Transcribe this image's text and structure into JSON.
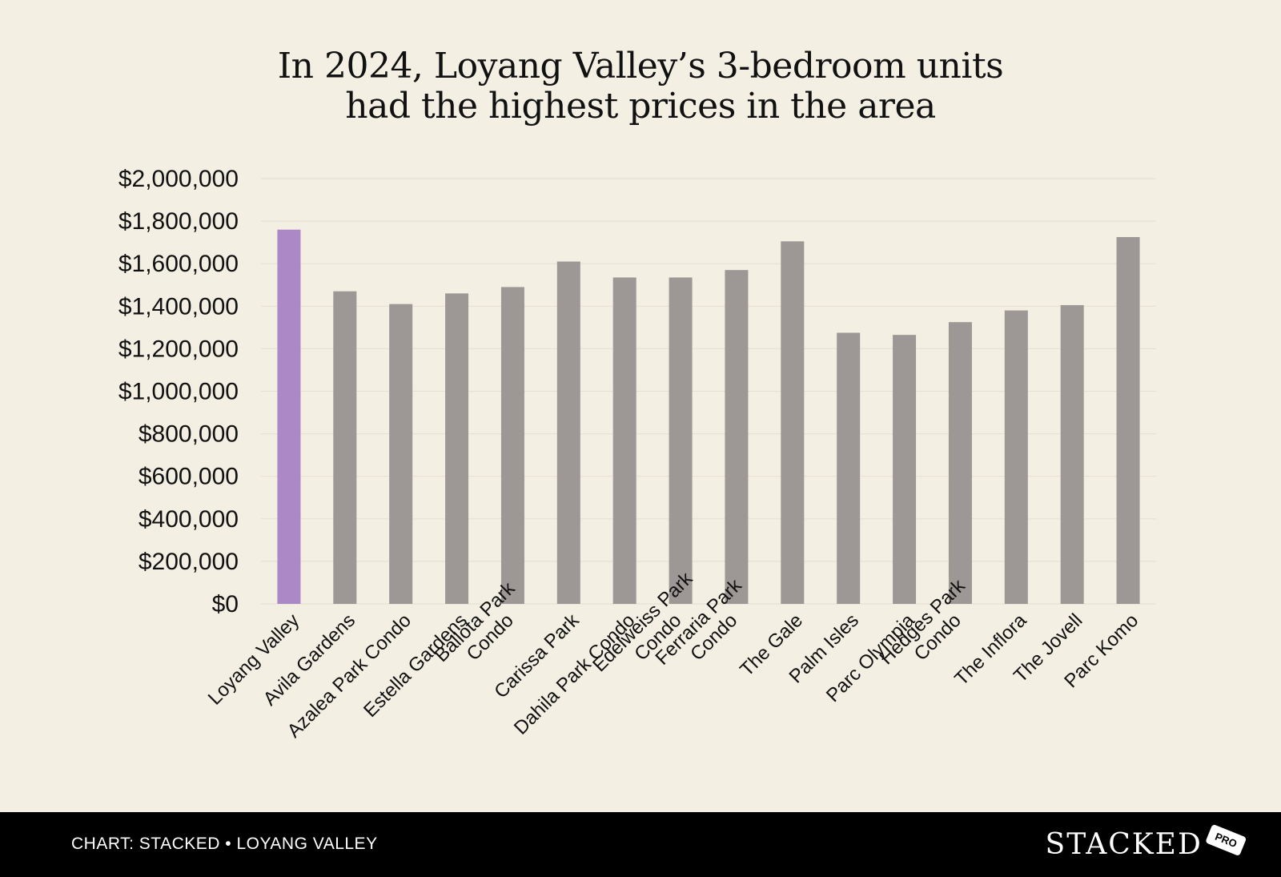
{
  "chart_data": {
    "type": "bar",
    "title_lines": [
      "In 2024, Loyang Valley’s 3-bedroom units",
      "had the highest prices in the area"
    ],
    "categories": [
      [
        "Loyang Valley"
      ],
      [
        "Avila Gardens"
      ],
      [
        "Azalea Park Condo"
      ],
      [
        "Estella Gardens"
      ],
      [
        "Ballota Park",
        "Condo"
      ],
      [
        "Carissa Park"
      ],
      [
        "Dahila Park Condo"
      ],
      [
        "Edelweiss Park",
        "Condo"
      ],
      [
        "Ferraria Park",
        "Condo"
      ],
      [
        "The Gale"
      ],
      [
        "Palm Isles"
      ],
      [
        "Parc Olympia"
      ],
      [
        "Hedges Park",
        "Condo"
      ],
      [
        "The Inflora"
      ],
      [
        "The Jovell"
      ],
      [
        "Parc Komo"
      ]
    ],
    "values": [
      1760000,
      1470000,
      1410000,
      1460000,
      1490000,
      1610000,
      1535000,
      1535000,
      1570000,
      1705000,
      1275000,
      1265000,
      1325000,
      1380000,
      1405000,
      1725000
    ],
    "highlight_index": 0,
    "colors": {
      "highlight": "#ac89c6",
      "default": "#9d9795",
      "grid": "#e6e1d5"
    },
    "ylim": [
      0,
      2000000
    ],
    "yticks": [
      "$0",
      "$200,000",
      "$400,000",
      "$600,000",
      "$800,000",
      "$1,000,000",
      "$1,200,000",
      "$1,400,000",
      "$1,600,000",
      "$1,800,000",
      "$2,000,000"
    ],
    "xlabel": "",
    "ylabel": ""
  },
  "footer": {
    "source": "CHART: STACKED • LOYANG VALLEY",
    "brand": "STACKED",
    "badge": "PRO"
  }
}
